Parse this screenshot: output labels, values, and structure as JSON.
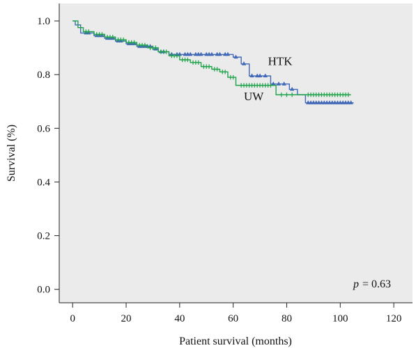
{
  "chart_data": {
    "type": "line",
    "subtype": "kaplan-meier",
    "title": "",
    "xlabel": "Patient survival (months)",
    "ylabel": "Survival (%)",
    "xlim": [
      -5,
      127
    ],
    "ylim": [
      -0.05,
      1.065
    ],
    "xticks": [
      0,
      20,
      40,
      60,
      80,
      100,
      120
    ],
    "yticks": [
      0.0,
      0.2,
      0.4,
      0.6,
      0.8,
      1.0
    ],
    "xtick_labels": [
      "0",
      "20",
      "40",
      "60",
      "80",
      "100",
      "120"
    ],
    "ytick_labels": [
      "0.0",
      "0.2",
      "0.4",
      "0.6",
      "0.8",
      "1.0"
    ],
    "grid": false,
    "background": "#ebebeb",
    "annotation": {
      "p_symbol": "p",
      "p_text": "= 0.63"
    },
    "series": [
      {
        "name": "HTK",
        "color": "#4169b8",
        "marker": "triangle",
        "steps": [
          [
            0,
            1.0
          ],
          [
            1,
            0.985
          ],
          [
            3,
            0.955
          ],
          [
            8,
            0.945
          ],
          [
            12,
            0.935
          ],
          [
            16,
            0.925
          ],
          [
            20,
            0.915
          ],
          [
            24,
            0.905
          ],
          [
            30,
            0.895
          ],
          [
            32,
            0.885
          ],
          [
            36,
            0.875
          ],
          [
            60,
            0.865
          ],
          [
            63,
            0.84
          ],
          [
            66,
            0.795
          ],
          [
            74,
            0.765
          ],
          [
            81,
            0.745
          ],
          [
            84,
            0.725
          ],
          [
            87,
            0.695
          ],
          [
            105,
            0.695
          ]
        ],
        "censored": [
          [
            5,
            0.955
          ],
          [
            6,
            0.955
          ],
          [
            9,
            0.945
          ],
          [
            10,
            0.945
          ],
          [
            11,
            0.945
          ],
          [
            13,
            0.935
          ],
          [
            14,
            0.935
          ],
          [
            15,
            0.935
          ],
          [
            17,
            0.925
          ],
          [
            18,
            0.925
          ],
          [
            21,
            0.915
          ],
          [
            22,
            0.915
          ],
          [
            23,
            0.915
          ],
          [
            25,
            0.905
          ],
          [
            26,
            0.905
          ],
          [
            27,
            0.905
          ],
          [
            28,
            0.905
          ],
          [
            29,
            0.905
          ],
          [
            31,
            0.895
          ],
          [
            33,
            0.885
          ],
          [
            34,
            0.885
          ],
          [
            37,
            0.875
          ],
          [
            39,
            0.875
          ],
          [
            40,
            0.875
          ],
          [
            42,
            0.875
          ],
          [
            43,
            0.875
          ],
          [
            44,
            0.875
          ],
          [
            46,
            0.875
          ],
          [
            47,
            0.875
          ],
          [
            48,
            0.875
          ],
          [
            50,
            0.875
          ],
          [
            51,
            0.875
          ],
          [
            52,
            0.875
          ],
          [
            54,
            0.875
          ],
          [
            55,
            0.875
          ],
          [
            57,
            0.875
          ],
          [
            58,
            0.875
          ],
          [
            61,
            0.865
          ],
          [
            64,
            0.84
          ],
          [
            67,
            0.795
          ],
          [
            69,
            0.795
          ],
          [
            70,
            0.795
          ],
          [
            72,
            0.795
          ],
          [
            75,
            0.765
          ],
          [
            77,
            0.765
          ],
          [
            79,
            0.765
          ],
          [
            82,
            0.745
          ],
          [
            88,
            0.695
          ],
          [
            89,
            0.695
          ],
          [
            90,
            0.695
          ],
          [
            91,
            0.695
          ],
          [
            92,
            0.695
          ],
          [
            93,
            0.695
          ],
          [
            94,
            0.695
          ],
          [
            95,
            0.695
          ],
          [
            96,
            0.695
          ],
          [
            97,
            0.695
          ],
          [
            98,
            0.695
          ],
          [
            99,
            0.695
          ],
          [
            100,
            0.695
          ],
          [
            101,
            0.695
          ],
          [
            102,
            0.695
          ],
          [
            103,
            0.695
          ],
          [
            104,
            0.695
          ]
        ]
      },
      {
        "name": "UW",
        "color": "#1fa34a",
        "marker": "plus",
        "steps": [
          [
            0,
            1.0
          ],
          [
            2,
            0.975
          ],
          [
            4,
            0.96
          ],
          [
            8,
            0.95
          ],
          [
            12,
            0.94
          ],
          [
            16,
            0.93
          ],
          [
            20,
            0.92
          ],
          [
            24,
            0.91
          ],
          [
            28,
            0.9
          ],
          [
            32,
            0.885
          ],
          [
            36,
            0.87
          ],
          [
            40,
            0.855
          ],
          [
            44,
            0.845
          ],
          [
            48,
            0.83
          ],
          [
            52,
            0.82
          ],
          [
            55,
            0.81
          ],
          [
            58,
            0.79
          ],
          [
            61,
            0.76
          ],
          [
            76,
            0.725
          ],
          [
            84,
            0.725
          ],
          [
            86,
            0.725
          ],
          [
            104,
            0.725
          ]
        ],
        "censored": [
          [
            5,
            0.96
          ],
          [
            6,
            0.96
          ],
          [
            9,
            0.95
          ],
          [
            10,
            0.95
          ],
          [
            11,
            0.95
          ],
          [
            13,
            0.94
          ],
          [
            14,
            0.94
          ],
          [
            15,
            0.94
          ],
          [
            17,
            0.93
          ],
          [
            18,
            0.93
          ],
          [
            19,
            0.93
          ],
          [
            21,
            0.92
          ],
          [
            22,
            0.92
          ],
          [
            23,
            0.92
          ],
          [
            25,
            0.91
          ],
          [
            26,
            0.91
          ],
          [
            27,
            0.91
          ],
          [
            29,
            0.9
          ],
          [
            30,
            0.9
          ],
          [
            31,
            0.9
          ],
          [
            33,
            0.885
          ],
          [
            34,
            0.885
          ],
          [
            35,
            0.885
          ],
          [
            37,
            0.87
          ],
          [
            38,
            0.87
          ],
          [
            39,
            0.87
          ],
          [
            41,
            0.855
          ],
          [
            42,
            0.855
          ],
          [
            43,
            0.855
          ],
          [
            45,
            0.845
          ],
          [
            46,
            0.845
          ],
          [
            47,
            0.845
          ],
          [
            49,
            0.83
          ],
          [
            50,
            0.83
          ],
          [
            51,
            0.83
          ],
          [
            53,
            0.82
          ],
          [
            54,
            0.82
          ],
          [
            56,
            0.81
          ],
          [
            57,
            0.81
          ],
          [
            59,
            0.79
          ],
          [
            60,
            0.79
          ],
          [
            63,
            0.76
          ],
          [
            64,
            0.76
          ],
          [
            65,
            0.76
          ],
          [
            66,
            0.76
          ],
          [
            67,
            0.76
          ],
          [
            68,
            0.76
          ],
          [
            69,
            0.76
          ],
          [
            70,
            0.76
          ],
          [
            71,
            0.76
          ],
          [
            72,
            0.76
          ],
          [
            73,
            0.76
          ],
          [
            74,
            0.76
          ],
          [
            78,
            0.725
          ],
          [
            80,
            0.725
          ],
          [
            82,
            0.725
          ],
          [
            88,
            0.725
          ],
          [
            89,
            0.725
          ],
          [
            90,
            0.725
          ],
          [
            91,
            0.725
          ],
          [
            92,
            0.725
          ],
          [
            93,
            0.725
          ],
          [
            94,
            0.725
          ],
          [
            95,
            0.725
          ],
          [
            96,
            0.725
          ],
          [
            97,
            0.725
          ],
          [
            98,
            0.725
          ],
          [
            99,
            0.725
          ],
          [
            100,
            0.725
          ],
          [
            101,
            0.725
          ],
          [
            102,
            0.725
          ],
          [
            103,
            0.725
          ]
        ]
      }
    ],
    "labels": [
      {
        "series": "HTK",
        "text": "HTK",
        "x": 73,
        "y": 0.835
      },
      {
        "series": "UW",
        "text": "UW",
        "x": 64,
        "y": 0.705
      }
    ]
  }
}
